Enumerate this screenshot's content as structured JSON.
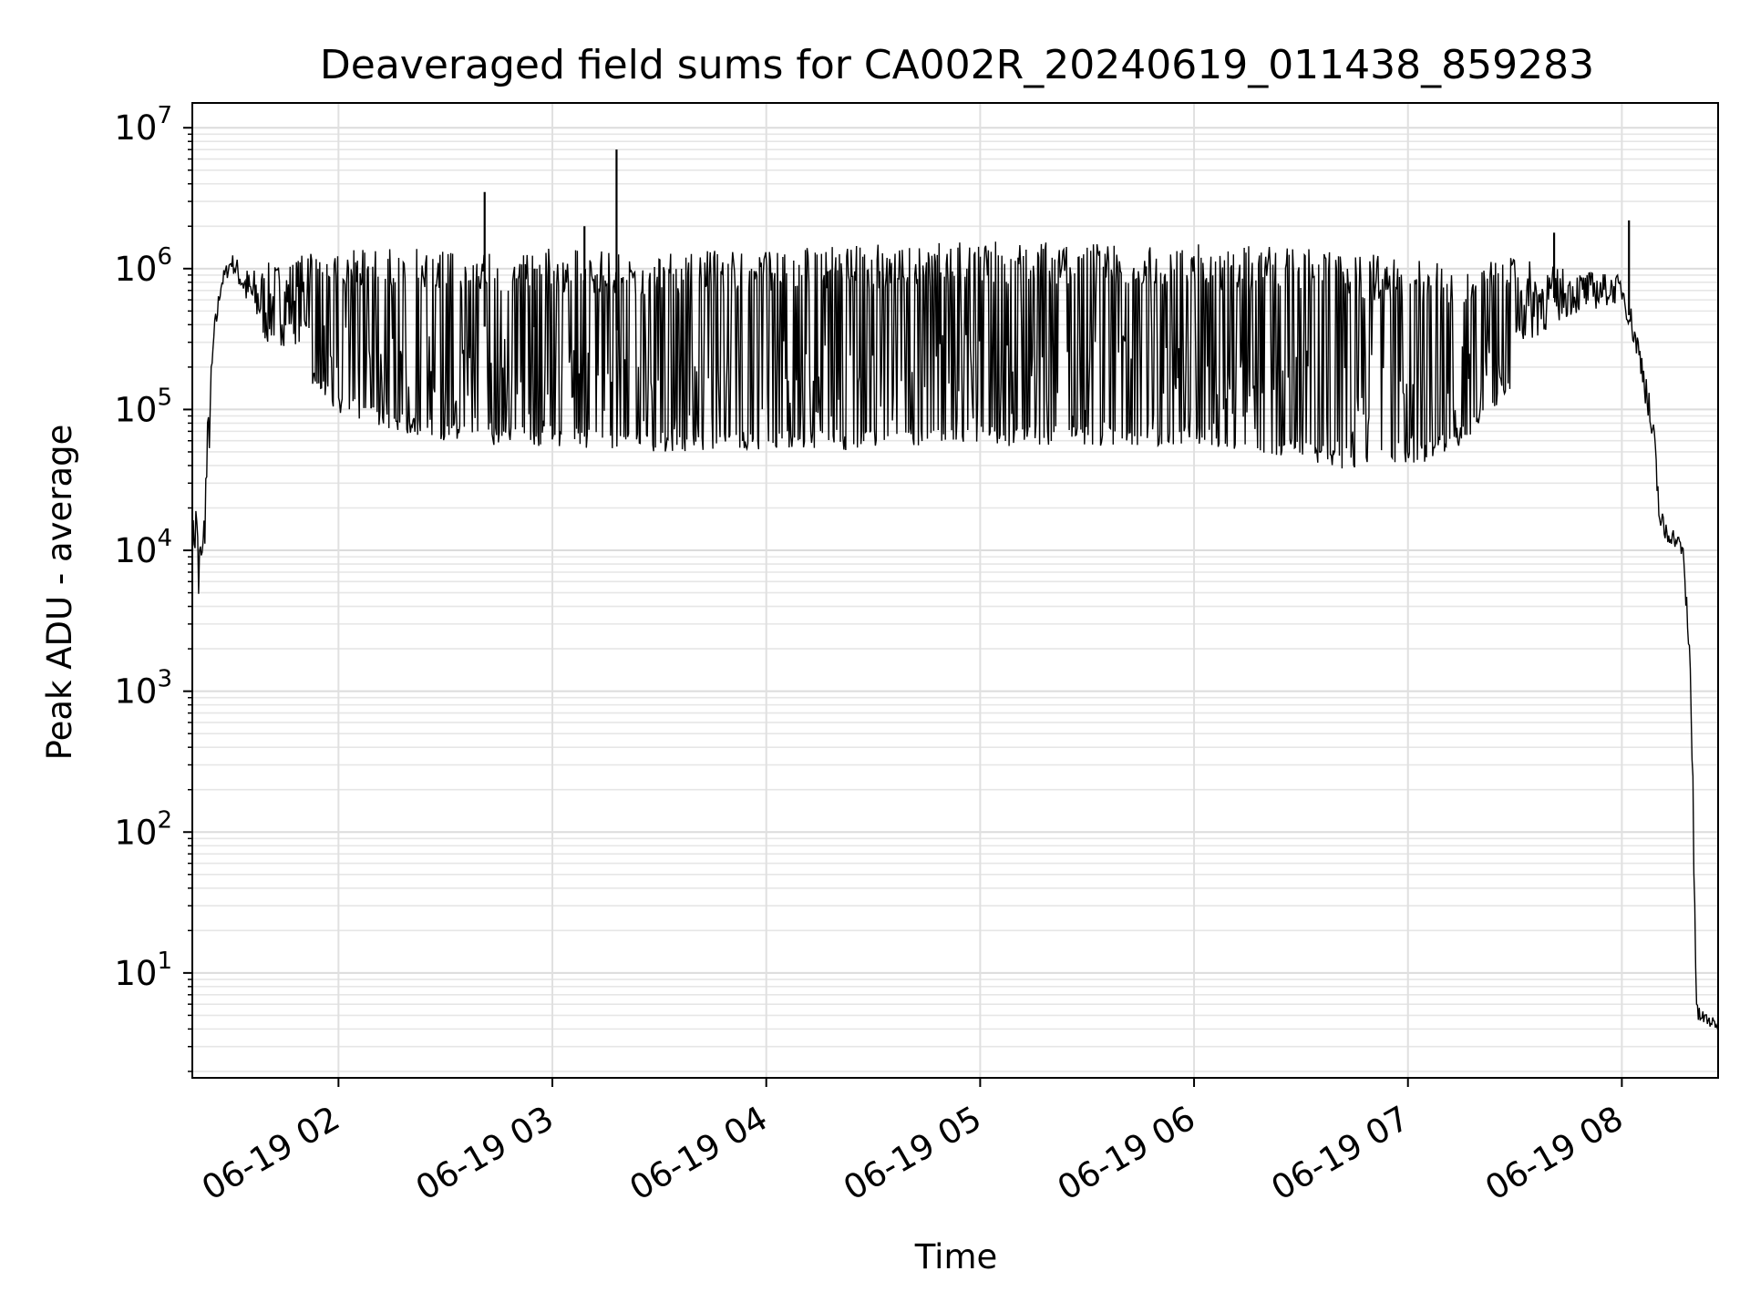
{
  "chart_data": {
    "type": "line",
    "title": "Deaveraged field sums for CA002R_20240619_011438_859283",
    "xlabel": "Time",
    "ylabel": "Peak ADU - average",
    "y_scale": "log",
    "ylim": [
      1.8,
      15000000
    ],
    "xlim": [
      "2024-06-19 01:19",
      "2024-06-19 08:27"
    ],
    "x_ticks": [
      {
        "label": "06-19 02",
        "value": "2024-06-19 02:00"
      },
      {
        "label": "06-19 03",
        "value": "2024-06-19 03:00"
      },
      {
        "label": "06-19 04",
        "value": "2024-06-19 04:00"
      },
      {
        "label": "06-19 05",
        "value": "2024-06-19 05:00"
      },
      {
        "label": "06-19 06",
        "value": "2024-06-19 06:00"
      },
      {
        "label": "06-19 07",
        "value": "2024-06-19 07:00"
      },
      {
        "label": "06-19 08",
        "value": "2024-06-19 08:00"
      }
    ],
    "y_ticks": [
      {
        "base": "10",
        "exp": "1",
        "value": 10
      },
      {
        "base": "10",
        "exp": "2",
        "value": 100
      },
      {
        "base": "10",
        "exp": "3",
        "value": 1000
      },
      {
        "base": "10",
        "exp": "4",
        "value": 10000
      },
      {
        "base": "10",
        "exp": "5",
        "value": 100000
      },
      {
        "base": "10",
        "exp": "6",
        "value": 1000000
      },
      {
        "base": "10",
        "exp": "7",
        "value": 10000000
      }
    ],
    "grid": true,
    "legend": "none",
    "line_color": "#000000",
    "series": [
      {
        "envelope": [
          {
            "t": "2024-06-19 01:19",
            "high": 15000,
            "low": 8000
          },
          {
            "t": "2024-06-19 01:21",
            "high": 45000,
            "low": 3800
          },
          {
            "t": "2024-06-19 01:22",
            "high": 14000,
            "low": 5000
          },
          {
            "t": "2024-06-19 01:23",
            "high": 70000,
            "low": 10000
          },
          {
            "t": "2024-06-19 01:25",
            "high": 400000,
            "low": 200000
          },
          {
            "t": "2024-06-19 01:27",
            "high": 900000,
            "low": 600000
          },
          {
            "t": "2024-06-19 01:30",
            "high": 1300000,
            "low": 900000
          },
          {
            "t": "2024-06-19 01:35",
            "high": 1000000,
            "low": 350000
          },
          {
            "t": "2024-06-19 01:40",
            "high": 1100000,
            "low": 170000
          },
          {
            "t": "2024-06-19 01:50",
            "high": 1300000,
            "low": 180000
          },
          {
            "t": "2024-06-19 02:00",
            "high": 1400000,
            "low": 95000
          },
          {
            "t": "2024-06-19 02:15",
            "high": 1450000,
            "low": 70000
          },
          {
            "t": "2024-06-19 02:30",
            "high": 1400000,
            "low": 60000
          },
          {
            "t": "2024-06-19 02:45",
            "high": 1400000,
            "low": 55000
          },
          {
            "t": "2024-06-19 03:00",
            "high": 1400000,
            "low": 55000
          },
          {
            "t": "2024-06-19 03:30",
            "high": 1300000,
            "low": 50000
          },
          {
            "t": "2024-06-19 04:00",
            "high": 1400000,
            "low": 50000
          },
          {
            "t": "2024-06-19 04:30",
            "high": 1500000,
            "low": 52000
          },
          {
            "t": "2024-06-19 05:00",
            "high": 1600000,
            "low": 55000
          },
          {
            "t": "2024-06-19 05:30",
            "high": 1600000,
            "low": 55000
          },
          {
            "t": "2024-06-19 06:00",
            "high": 1500000,
            "low": 55000
          },
          {
            "t": "2024-06-19 06:30",
            "high": 1400000,
            "low": 42000
          },
          {
            "t": "2024-06-19 06:45",
            "high": 1300000,
            "low": 37000
          },
          {
            "t": "2024-06-19 07:00",
            "high": 1200000,
            "low": 38000
          },
          {
            "t": "2024-06-19 07:15",
            "high": 1100000,
            "low": 55000
          },
          {
            "t": "2024-06-19 07:30",
            "high": 1200000,
            "low": 150000
          },
          {
            "t": "2024-06-19 07:45",
            "high": 1000000,
            "low": 350000
          },
          {
            "t": "2024-06-19 08:00",
            "high": 900000,
            "low": 500000
          },
          {
            "t": "2024-06-19 08:03",
            "high": 500000,
            "low": 250000
          },
          {
            "t": "2024-06-19 08:06",
            "high": 250000,
            "low": 120000
          },
          {
            "t": "2024-06-19 08:09",
            "high": 80000,
            "low": 30000
          },
          {
            "t": "2024-06-19 08:11",
            "high": 20000,
            "low": 8000
          },
          {
            "t": "2024-06-19 08:14",
            "high": 15000,
            "low": 10000
          },
          {
            "t": "2024-06-19 08:17",
            "high": 12000,
            "low": 8000
          },
          {
            "t": "2024-06-19 08:19",
            "high": 3000,
            "low": 1000
          },
          {
            "t": "2024-06-19 08:20",
            "high": 300,
            "low": 30
          },
          {
            "t": "2024-06-19 08:21",
            "high": 6,
            "low": 3.8
          },
          {
            "t": "2024-06-19 08:27",
            "high": 4.5,
            "low": 3.8
          }
        ],
        "spikes": [
          {
            "t": "2024-06-19 02:41",
            "value": 3500000
          },
          {
            "t": "2024-06-19 02:55",
            "value": 1000000
          },
          {
            "t": "2024-06-19 03:09",
            "value": 2000000
          },
          {
            "t": "2024-06-19 03:18",
            "value": 7000000
          },
          {
            "t": "2024-06-19 07:41",
            "value": 1800000
          },
          {
            "t": "2024-06-19 08:02",
            "value": 2200000
          }
        ]
      }
    ]
  }
}
